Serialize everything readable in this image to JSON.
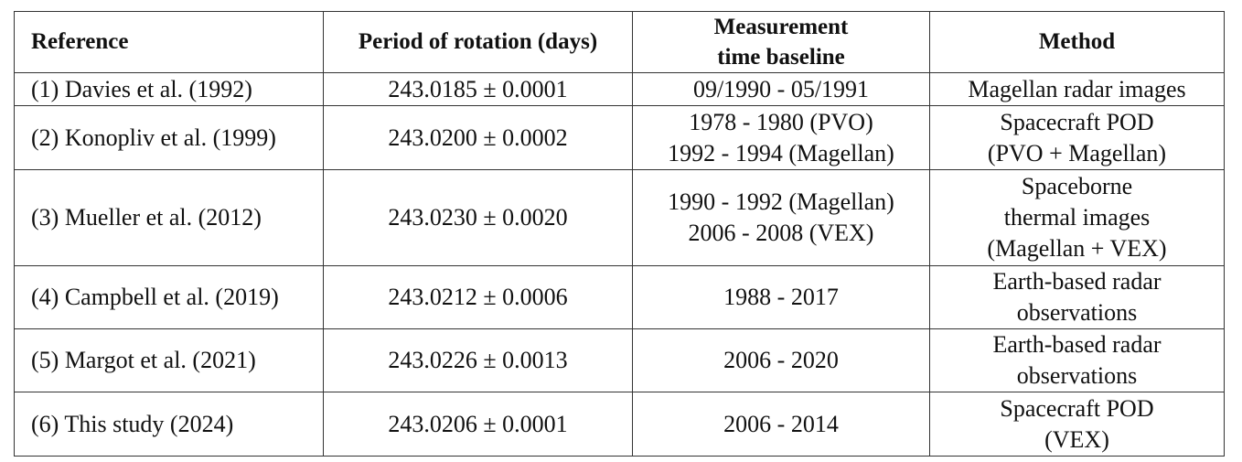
{
  "table": {
    "headers": [
      [
        "Reference"
      ],
      [
        "Period of rotation (days)"
      ],
      [
        "Measurement",
        "time baseline"
      ],
      [
        "Method"
      ]
    ],
    "rows": [
      {
        "reference": "(1) Davies et al. (1992)",
        "period": "243.0185 ± 0.0001",
        "baseline": [
          "09/1990 - 05/1991"
        ],
        "method": [
          "Magellan radar images"
        ]
      },
      {
        "reference": "(2) Konopliv et al. (1999)",
        "period": "243.0200 ± 0.0002",
        "baseline": [
          "1978 - 1980 (PVO)",
          "1992 - 1994 (Magellan)"
        ],
        "method": [
          "Spacecraft POD",
          "(PVO + Magellan)"
        ]
      },
      {
        "reference": "(3) Mueller et al. (2012)",
        "period": "243.0230 ± 0.0020",
        "baseline": [
          "1990 - 1992 (Magellan)",
          "2006 - 2008 (VEX)"
        ],
        "method": [
          "Spaceborne",
          "thermal images",
          "(Magellan + VEX)"
        ]
      },
      {
        "reference": "(4) Campbell et al. (2019)",
        "period": "243.0212 ± 0.0006",
        "baseline": [
          "1988 - 2017"
        ],
        "method": [
          "Earth-based radar",
          "observations"
        ]
      },
      {
        "reference": "(5) Margot et al. (2021)",
        "period": "243.0226 ± 0.0013",
        "baseline": [
          "2006 - 2020"
        ],
        "method": [
          "Earth-based radar",
          "observations"
        ]
      },
      {
        "reference": "(6) This study (2024)",
        "period": "243.0206 ± 0.0001",
        "baseline": [
          "2006 - 2014"
        ],
        "method": [
          "Spacecraft POD",
          "(VEX)"
        ]
      }
    ]
  }
}
